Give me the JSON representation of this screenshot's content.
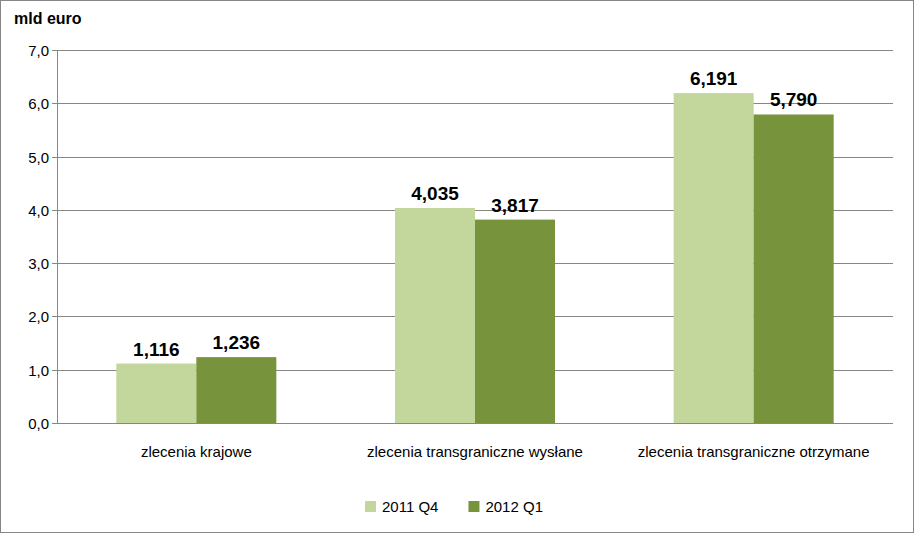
{
  "chart_data": {
    "type": "bar",
    "y_label": "mld euro",
    "categories": [
      "zlecenia krajowe",
      "zlecenia transgraniczne wysłane",
      "zlecenia transgraniczne otrzymane"
    ],
    "series": [
      {
        "name": "2011 Q4",
        "color": "#c3d69b",
        "values": [
          1.116,
          4.035,
          6.191
        ],
        "value_labels": [
          "1,116",
          "4,035",
          "6,191"
        ]
      },
      {
        "name": "2012 Q1",
        "color": "#77933c",
        "values": [
          1.236,
          3.817,
          5.79
        ],
        "value_labels": [
          "1,236",
          "3,817",
          "5,790"
        ]
      }
    ],
    "ylim": [
      0,
      7
    ],
    "yticks": [
      {
        "value": 0,
        "label": "0,0"
      },
      {
        "value": 1,
        "label": "1,0"
      },
      {
        "value": 2,
        "label": "2,0"
      },
      {
        "value": 3,
        "label": "3,0"
      },
      {
        "value": 4,
        "label": "4,0"
      },
      {
        "value": 5,
        "label": "5,0"
      },
      {
        "value": 6,
        "label": "6,0"
      },
      {
        "value": 7,
        "label": "7,0"
      }
    ],
    "grid": true,
    "legend": "bottom",
    "data_labels": true
  }
}
